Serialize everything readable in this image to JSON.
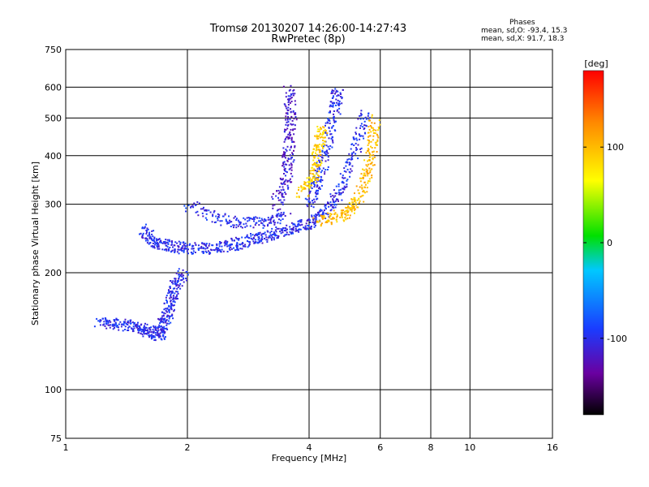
{
  "header": {
    "title_line1": "Tromsø 20130207 14:26:00-14:27:43",
    "title_line2": "RwPretec (8p)"
  },
  "stats": {
    "heading": "Phases",
    "o_mode": "mean, sd,O: -93.4, 15.3",
    "x_mode": "mean, sd,X:  91.7, 18.3"
  },
  "colorbar": {
    "unit_label": "[deg]",
    "ticks": [
      "100",
      "0",
      "-100"
    ],
    "range": [
      -180,
      180
    ]
  },
  "chart_data": {
    "type": "scatter",
    "title": "Tromsø 20130207 14:26:00-14:27:43",
    "subtitle": "RwPretec (8p)",
    "xlabel": "Frequency [MHz]",
    "ylabel": "Stationary phase Virtual Height [km]",
    "x_scale": "log",
    "y_scale": "log",
    "xlim": [
      1,
      16
    ],
    "ylim": [
      75,
      750
    ],
    "x_ticks": [
      "1",
      "2",
      "4",
      "6",
      "8",
      "10",
      "16"
    ],
    "y_ticks": [
      "75",
      "100",
      "200",
      "300",
      "400",
      "500",
      "600",
      "750"
    ],
    "grid": true,
    "color_by": "phase [deg]",
    "traces": [
      {
        "mode": "O",
        "phase": -100,
        "points": [
          [
            1.2,
            150
          ],
          [
            1.35,
            148
          ],
          [
            1.5,
            145
          ],
          [
            1.6,
            142
          ],
          [
            1.7,
            138
          ],
          [
            1.75,
            150
          ],
          [
            1.8,
            165
          ],
          [
            1.85,
            185
          ],
          [
            1.95,
            200
          ]
        ]
      },
      {
        "mode": "O",
        "phase": -100,
        "points": [
          [
            1.55,
            260
          ],
          [
            1.65,
            240
          ],
          [
            1.8,
            235
          ],
          [
            2.0,
            232
          ],
          [
            2.3,
            232
          ],
          [
            2.6,
            237
          ],
          [
            2.9,
            245
          ],
          [
            3.2,
            252
          ],
          [
            3.6,
            262
          ],
          [
            4.0,
            270
          ],
          [
            4.4,
            290
          ],
          [
            4.8,
            330
          ],
          [
            5.2,
            420
          ],
          [
            5.5,
            520
          ]
        ]
      },
      {
        "mode": "O",
        "phase": -100,
        "points": [
          [
            2.0,
            300
          ],
          [
            2.5,
            272
          ],
          [
            3.0,
            270
          ],
          [
            3.5,
            278
          ]
        ]
      },
      {
        "mode": "O",
        "phase": -115,
        "points": [
          [
            3.3,
            300
          ],
          [
            3.5,
            350
          ],
          [
            3.55,
            420
          ],
          [
            3.6,
            500
          ],
          [
            3.55,
            600
          ]
        ]
      },
      {
        "mode": "O",
        "phase": -100,
        "points": [
          [
            4.0,
            300
          ],
          [
            4.2,
            350
          ],
          [
            4.4,
            420
          ],
          [
            4.6,
            520
          ],
          [
            4.7,
            600
          ]
        ]
      },
      {
        "mode": "X",
        "phase": 100,
        "points": [
          [
            4.2,
            272
          ],
          [
            4.8,
            282
          ],
          [
            5.2,
            300
          ],
          [
            5.5,
            350
          ],
          [
            5.7,
            420
          ],
          [
            5.8,
            500
          ]
        ]
      },
      {
        "mode": "X",
        "phase": 90,
        "points": [
          [
            3.8,
            320
          ],
          [
            4.1,
            360
          ],
          [
            4.2,
            420
          ],
          [
            4.3,
            480
          ]
        ]
      }
    ]
  }
}
